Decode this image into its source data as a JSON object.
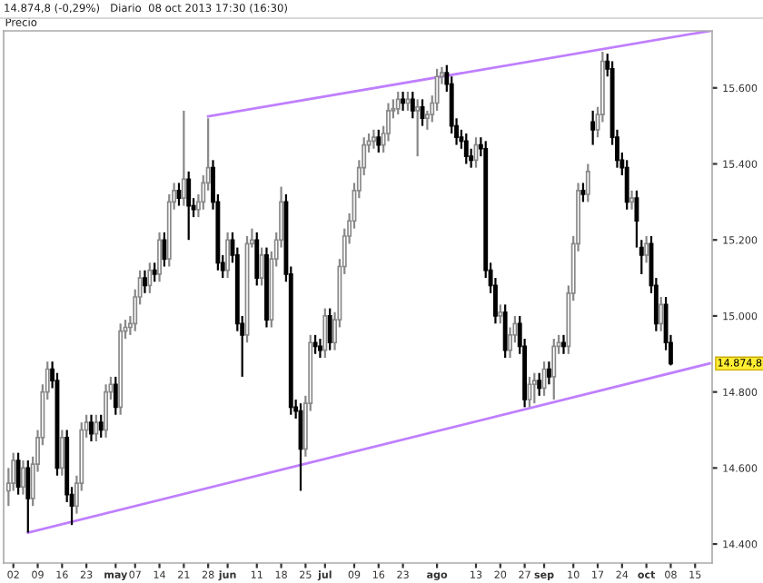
{
  "chart_data": {
    "type": "candlestick",
    "title": "14.874,8 (-0,29%)   Diario  08 oct 2013 17:30 (16:30)",
    "ylabel": "Precio",
    "categories": [
      null,
      "02",
      null,
      null,
      null,
      null,
      "09",
      null,
      null,
      null,
      null,
      "16",
      null,
      null,
      null,
      null,
      "23",
      null,
      null,
      null,
      null,
      null,
      "may",
      null,
      null,
      null,
      "07",
      null,
      null,
      null,
      null,
      "14",
      null,
      null,
      null,
      null,
      "21",
      null,
      null,
      null,
      null,
      "28",
      null,
      null,
      null,
      "jun",
      null,
      null,
      null,
      null,
      null,
      "11",
      null,
      null,
      null,
      null,
      "18",
      null,
      null,
      null,
      null,
      "25",
      null,
      null,
      null,
      "jul",
      null,
      null,
      null,
      null,
      null,
      "09",
      null,
      null,
      null,
      null,
      "16",
      null,
      null,
      null,
      null,
      "23",
      null,
      null,
      null,
      null,
      null,
      null,
      "ago",
      null,
      null,
      null,
      null,
      null,
      null,
      null,
      "13",
      null,
      null,
      null,
      null,
      "20",
      null,
      null,
      null,
      null,
      "27",
      null,
      null,
      null,
      "sep",
      null,
      null,
      null,
      null,
      null,
      "10",
      null,
      null,
      null,
      null,
      "17",
      null,
      null,
      null,
      null,
      "24",
      null,
      null,
      null,
      null,
      "oct",
      null,
      null,
      null,
      null,
      "08",
      null,
      null,
      null,
      null,
      "15",
      null,
      null,
      null
    ],
    "ohlc": [
      [
        14540,
        14600,
        14500,
        14560
      ],
      [
        14560,
        14640,
        14540,
        14620
      ],
      [
        14620,
        14640,
        14530,
        14550
      ],
      [
        14550,
        14620,
        14530,
        14600
      ],
      [
        14600,
        14620,
        14430,
        14520
      ],
      [
        14520,
        14630,
        14500,
        14610
      ],
      [
        14610,
        14700,
        14590,
        14680
      ],
      [
        14680,
        14820,
        14660,
        14800
      ],
      [
        14800,
        14880,
        14780,
        14860
      ],
      [
        14860,
        14880,
        14810,
        14830
      ],
      [
        14830,
        14850,
        14580,
        14600
      ],
      [
        14600,
        14700,
        14580,
        14680
      ],
      [
        14680,
        14700,
        14510,
        14530
      ],
      [
        14530,
        14550,
        14450,
        14500
      ],
      [
        14500,
        14580,
        14480,
        14560
      ],
      [
        14560,
        14720,
        14540,
        14700
      ],
      [
        14700,
        14740,
        14680,
        14720
      ],
      [
        14720,
        14740,
        14670,
        14690
      ],
      [
        14690,
        14740,
        14670,
        14720
      ],
      [
        14720,
        14740,
        14680,
        14700
      ],
      [
        14700,
        14820,
        14680,
        14800
      ],
      [
        14800,
        14840,
        14780,
        14820
      ],
      [
        14820,
        14840,
        14740,
        14760
      ],
      [
        14760,
        14980,
        14740,
        14960
      ],
      [
        14960,
        14990,
        14940,
        14970
      ],
      [
        14970,
        15000,
        14950,
        14980
      ],
      [
        14980,
        15070,
        14960,
        15050
      ],
      [
        15050,
        15120,
        15030,
        15100
      ],
      [
        15100,
        15120,
        15060,
        15080
      ],
      [
        15080,
        15140,
        15060,
        15120
      ],
      [
        15120,
        15140,
        15090,
        15110
      ],
      [
        15110,
        15220,
        15090,
        15200
      ],
      [
        15200,
        15220,
        15130,
        15150
      ],
      [
        15150,
        15320,
        15130,
        15300
      ],
      [
        15300,
        15350,
        15280,
        15330
      ],
      [
        15330,
        15350,
        15290,
        15310
      ],
      [
        15310,
        15540,
        15290,
        15360
      ],
      [
        15360,
        15380,
        15200,
        15290
      ],
      [
        15290,
        15310,
        15260,
        15280
      ],
      [
        15280,
        15320,
        15260,
        15300
      ],
      [
        15300,
        15370,
        15280,
        15350
      ],
      [
        15350,
        15520,
        15330,
        15390
      ],
      [
        15390,
        15410,
        15280,
        15300
      ],
      [
        15300,
        15320,
        15120,
        15140
      ],
      [
        15140,
        15160,
        15100,
        15120
      ],
      [
        15120,
        15220,
        15100,
        15200
      ],
      [
        15200,
        15220,
        15140,
        15160
      ],
      [
        15160,
        15180,
        14960,
        14980
      ],
      [
        14980,
        15000,
        14840,
        14950
      ],
      [
        14950,
        15210,
        14930,
        15190
      ],
      [
        15190,
        15230,
        15180,
        15200
      ],
      [
        15200,
        15220,
        15080,
        15100
      ],
      [
        15100,
        15180,
        15080,
        15160
      ],
      [
        15160,
        15180,
        14970,
        14990
      ],
      [
        14990,
        15170,
        14970,
        15150
      ],
      [
        15150,
        15220,
        15130,
        15200
      ],
      [
        15200,
        15340,
        15180,
        15300
      ],
      [
        15300,
        15320,
        15090,
        15110
      ],
      [
        15110,
        15130,
        14740,
        14760
      ],
      [
        14760,
        14780,
        14730,
        14750
      ],
      [
        14750,
        14770,
        14540,
        14650
      ],
      [
        14650,
        14790,
        14630,
        14770
      ],
      [
        14770,
        14950,
        14750,
        14930
      ],
      [
        14930,
        14950,
        14900,
        14920
      ],
      [
        14920,
        14940,
        14890,
        14910
      ],
      [
        14910,
        15020,
        14890,
        15000
      ],
      [
        15000,
        15020,
        14910,
        14930
      ],
      [
        14930,
        15010,
        14910,
        14990
      ],
      [
        14990,
        15150,
        14970,
        15130
      ],
      [
        15130,
        15230,
        15110,
        15210
      ],
      [
        15210,
        15270,
        15190,
        15250
      ],
      [
        15250,
        15350,
        15230,
        15330
      ],
      [
        15330,
        15410,
        15310,
        15390
      ],
      [
        15390,
        15470,
        15370,
        15450
      ],
      [
        15450,
        15480,
        15430,
        15460
      ],
      [
        15460,
        15490,
        15440,
        15470
      ],
      [
        15470,
        15490,
        15430,
        15450
      ],
      [
        15450,
        15500,
        15430,
        15480
      ],
      [
        15480,
        15560,
        15460,
        15540
      ],
      [
        15540,
        15570,
        15520,
        15545
      ],
      [
        15545,
        15590,
        15530,
        15570
      ],
      [
        15570,
        15590,
        15540,
        15560
      ],
      [
        15560,
        15590,
        15540,
        15570
      ],
      [
        15570,
        15590,
        15520,
        15540
      ],
      [
        15540,
        15570,
        15420,
        15550
      ],
      [
        15550,
        15570,
        15500,
        15520
      ],
      [
        15520,
        15540,
        15490,
        15530
      ],
      [
        15530,
        15580,
        15510,
        15560
      ],
      [
        15560,
        15650,
        15540,
        15630
      ],
      [
        15630,
        15655,
        15610,
        15640
      ],
      [
        15640,
        15660,
        15590,
        15610
      ],
      [
        15610,
        15630,
        15480,
        15500
      ],
      [
        15500,
        15520,
        15450,
        15470
      ],
      [
        15470,
        15490,
        15440,
        15460
      ],
      [
        15460,
        15480,
        15400,
        15420
      ],
      [
        15420,
        15440,
        15390,
        15410
      ],
      [
        15410,
        15470,
        15390,
        15450
      ],
      [
        15450,
        15470,
        15420,
        15440
      ],
      [
        15440,
        15460,
        15100,
        15120
      ],
      [
        15120,
        15140,
        15060,
        15080
      ],
      [
        15080,
        15100,
        14980,
        15000
      ],
      [
        15000,
        15030,
        14980,
        15010
      ],
      [
        15010,
        15030,
        14890,
        14910
      ],
      [
        14910,
        14970,
        14890,
        14950
      ],
      [
        14950,
        15000,
        14930,
        14980
      ],
      [
        14980,
        15000,
        14900,
        14920
      ],
      [
        14920,
        14940,
        14760,
        14780
      ],
      [
        14780,
        14840,
        14760,
        14820
      ],
      [
        14820,
        14850,
        14770,
        14830
      ],
      [
        14830,
        14850,
        14790,
        14810
      ],
      [
        14810,
        14880,
        14790,
        14860
      ],
      [
        14860,
        14880,
        14820,
        14840
      ],
      [
        14840,
        14940,
        14780,
        14920
      ],
      [
        14920,
        14950,
        14900,
        14930
      ],
      [
        14930,
        14950,
        14900,
        14920
      ],
      [
        14920,
        15080,
        14900,
        15060
      ],
      [
        15060,
        15210,
        15040,
        15190
      ],
      [
        15190,
        15350,
        15170,
        15330
      ],
      [
        15330,
        15350,
        15300,
        15320
      ],
      [
        15320,
        15400,
        15300,
        15380
      ],
      [
        15510,
        15540,
        15450,
        15490
      ],
      [
        15490,
        15550,
        15470,
        15530
      ],
      [
        15530,
        15695,
        15510,
        15670
      ],
      [
        15670,
        15690,
        15630,
        15650
      ],
      [
        15650,
        15670,
        15450,
        15470
      ],
      [
        15470,
        15490,
        15390,
        15410
      ],
      [
        15410,
        15430,
        15370,
        15390
      ],
      [
        15390,
        15410,
        15280,
        15300
      ],
      [
        15300,
        15330,
        15280,
        15310
      ],
      [
        15310,
        15330,
        15180,
        15250
      ],
      [
        15180,
        15200,
        15110,
        15160
      ],
      [
        15160,
        15210,
        15140,
        15190
      ],
      [
        15190,
        15210,
        15060,
        15080
      ],
      [
        15080,
        15100,
        14960,
        14980
      ],
      [
        14980,
        15050,
        14960,
        15030
      ],
      [
        15030,
        15050,
        14910,
        14930
      ],
      [
        14930,
        14950,
        14870,
        14874.8
      ],
      null,
      null,
      null,
      null,
      null,
      null,
      null,
      null
    ],
    "series": [
      {
        "type": "line",
        "color": "#bf7fff",
        "values": [
          null,
          null,
          null,
          null,
          null,
          null,
          null,
          null,
          null,
          null,
          null,
          null,
          null,
          null,
          null,
          null,
          null,
          null,
          null,
          null,
          null,
          null,
          null,
          null,
          null,
          null,
          null,
          null,
          null,
          null,
          null,
          null,
          null,
          null,
          null,
          null,
          null,
          null,
          null,
          null,
          null,
          15525,
          null,
          null,
          null,
          null,
          null,
          null,
          null,
          null,
          null,
          null,
          null,
          null,
          null,
          null,
          null,
          null,
          null,
          null,
          null,
          null,
          null,
          null,
          null,
          null,
          null,
          null,
          null,
          null,
          null,
          null,
          null,
          null,
          null,
          null,
          null,
          null,
          null,
          null,
          null,
          null,
          null,
          null,
          null,
          null,
          null,
          null,
          null,
          null,
          null,
          null,
          null,
          null,
          null,
          null,
          null,
          null,
          null,
          null,
          null,
          null,
          null,
          null,
          null,
          null,
          null,
          null,
          null,
          null,
          null,
          null,
          null,
          null,
          null,
          null,
          null,
          null,
          null,
          null,
          null,
          null,
          null,
          null,
          null,
          null,
          null,
          null,
          null,
          null,
          null,
          null,
          null,
          null,
          null,
          null,
          null,
          null,
          null,
          null,
          null,
          null,
          null,
          null,
          15750
        ]
      },
      {
        "type": "line",
        "color": "#bf7fff",
        "values": [
          null,
          null,
          null,
          null,
          14430,
          null,
          null,
          null,
          null,
          null,
          null,
          null,
          null,
          null,
          null,
          null,
          null,
          null,
          null,
          null,
          null,
          null,
          null,
          null,
          null,
          null,
          null,
          null,
          null,
          null,
          null,
          null,
          null,
          null,
          null,
          null,
          null,
          null,
          null,
          null,
          null,
          null,
          null,
          null,
          null,
          null,
          null,
          null,
          null,
          null,
          null,
          null,
          null,
          null,
          null,
          null,
          null,
          null,
          null,
          null,
          null,
          null,
          null,
          null,
          null,
          null,
          null,
          null,
          null,
          null,
          null,
          null,
          null,
          null,
          null,
          null,
          null,
          null,
          null,
          null,
          null,
          null,
          null,
          null,
          null,
          null,
          null,
          null,
          null,
          null,
          null,
          null,
          null,
          null,
          null,
          null,
          null,
          null,
          null,
          null,
          null,
          null,
          null,
          null,
          null,
          null,
          null,
          null,
          null,
          null,
          null,
          null,
          null,
          null,
          null,
          null,
          null,
          null,
          null,
          null,
          null,
          null,
          null,
          null,
          null,
          null,
          null,
          null,
          null,
          null,
          null,
          null,
          null,
          null,
          null,
          null,
          null,
          null,
          null,
          null,
          null,
          null,
          null,
          null,
          14875
        ]
      }
    ],
    "ylim": [
      14350,
      15750
    ],
    "yticks": [
      {
        "value": 14400,
        "label": "14.400"
      },
      {
        "value": 14600,
        "label": "14.600"
      },
      {
        "value": 14800,
        "label": "14.800"
      },
      {
        "value": 15000,
        "label": "15.000"
      },
      {
        "value": 15200,
        "label": "15.200"
      },
      {
        "value": 15400,
        "label": "15.400"
      },
      {
        "value": 15600,
        "label": "15.600"
      }
    ],
    "annotations": [
      "14.874,8"
    ]
  }
}
